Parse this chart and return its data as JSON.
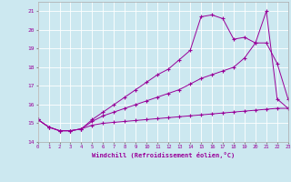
{
  "xlabel": "Windchill (Refroidissement éolien,°C)",
  "xlim": [
    0,
    23
  ],
  "ylim": [
    14,
    21.5
  ],
  "bg_color": "#cce8f0",
  "line_color": "#990099",
  "grid_color": "#ffffff",
  "series": [
    {
      "x": [
        0,
        1,
        2,
        3,
        4,
        5,
        6,
        7,
        8,
        9,
        10,
        11,
        12,
        13,
        14,
        15,
        16,
        17,
        18,
        19,
        20,
        21,
        22,
        23
      ],
      "y": [
        15.2,
        14.8,
        14.6,
        14.6,
        14.7,
        14.9,
        15.0,
        15.05,
        15.1,
        15.15,
        15.2,
        15.25,
        15.3,
        15.35,
        15.4,
        15.45,
        15.5,
        15.55,
        15.6,
        15.65,
        15.7,
        15.75,
        15.8,
        15.8
      ]
    },
    {
      "x": [
        0,
        1,
        2,
        3,
        4,
        5,
        6,
        7,
        8,
        9,
        10,
        11,
        12,
        13,
        14,
        15,
        16,
        17,
        18,
        19,
        20,
        21,
        22,
        23
      ],
      "y": [
        15.2,
        14.8,
        14.6,
        14.6,
        14.7,
        15.1,
        15.4,
        15.6,
        15.8,
        16.0,
        16.2,
        16.4,
        16.6,
        16.8,
        17.1,
        17.4,
        17.6,
        17.8,
        18.0,
        18.5,
        19.3,
        19.3,
        18.2,
        16.3
      ]
    },
    {
      "x": [
        0,
        1,
        2,
        3,
        4,
        5,
        6,
        7,
        8,
        9,
        10,
        11,
        12,
        13,
        14,
        15,
        16,
        17,
        18,
        19,
        20,
        21,
        22,
        23
      ],
      "y": [
        15.2,
        14.8,
        14.6,
        14.6,
        14.7,
        15.2,
        15.6,
        16.0,
        16.4,
        16.8,
        17.2,
        17.6,
        17.9,
        18.4,
        18.9,
        20.7,
        20.8,
        20.6,
        19.5,
        19.6,
        19.3,
        21.0,
        16.3,
        15.8
      ]
    }
  ]
}
